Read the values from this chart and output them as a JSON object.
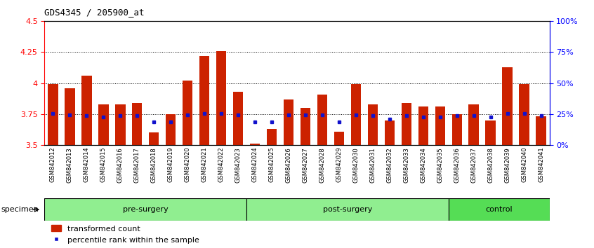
{
  "title": "GDS4345 / 205900_at",
  "samples": [
    "GSM842012",
    "GSM842013",
    "GSM842014",
    "GSM842015",
    "GSM842016",
    "GSM842017",
    "GSM842018",
    "GSM842019",
    "GSM842020",
    "GSM842021",
    "GSM842022",
    "GSM842023",
    "GSM842024",
    "GSM842025",
    "GSM842026",
    "GSM842027",
    "GSM842028",
    "GSM842029",
    "GSM842030",
    "GSM842031",
    "GSM842032",
    "GSM842033",
    "GSM842034",
    "GSM842035",
    "GSM842036",
    "GSM842037",
    "GSM842038",
    "GSM842039",
    "GSM842040",
    "GSM842041"
  ],
  "red_values": [
    3.99,
    3.96,
    4.06,
    3.83,
    3.83,
    3.84,
    3.6,
    3.75,
    4.02,
    4.22,
    4.26,
    3.93,
    3.51,
    3.63,
    3.87,
    3.8,
    3.91,
    3.61,
    3.99,
    3.83,
    3.7,
    3.84,
    3.81,
    3.81,
    3.75,
    3.83,
    3.7,
    4.13,
    3.99,
    3.73
  ],
  "blue_values": [
    3.755,
    3.745,
    3.735,
    3.725,
    3.735,
    3.74,
    3.685,
    3.685,
    3.745,
    3.755,
    3.755,
    3.745,
    3.685,
    3.685,
    3.745,
    3.745,
    3.745,
    3.685,
    3.745,
    3.735,
    3.71,
    3.735,
    3.725,
    3.725,
    3.735,
    3.735,
    3.725,
    3.755,
    3.755,
    3.735
  ],
  "groups": [
    {
      "label": "pre-surgery",
      "start": 0,
      "end": 12,
      "color": "#90EE90"
    },
    {
      "label": "post-surgery",
      "start": 12,
      "end": 24,
      "color": "#90EE90"
    },
    {
      "label": "control",
      "start": 24,
      "end": 30,
      "color": "#55DD55"
    }
  ],
  "ylim": [
    3.5,
    4.5
  ],
  "yticks_left": [
    3.5,
    3.75,
    4.0,
    4.25,
    4.5
  ],
  "yticks_right_vals": [
    0,
    25,
    50,
    75,
    100
  ],
  "yticks_right_labels": [
    "0%",
    "25%",
    "50%",
    "75%",
    "100%"
  ],
  "bar_color": "#CC2200",
  "dot_color": "#1111CC",
  "baseline": 3.5,
  "grid_values": [
    3.75,
    4.0,
    4.25
  ],
  "legend_items": [
    "transformed count",
    "percentile rank within the sample"
  ],
  "bar_width": 0.6
}
